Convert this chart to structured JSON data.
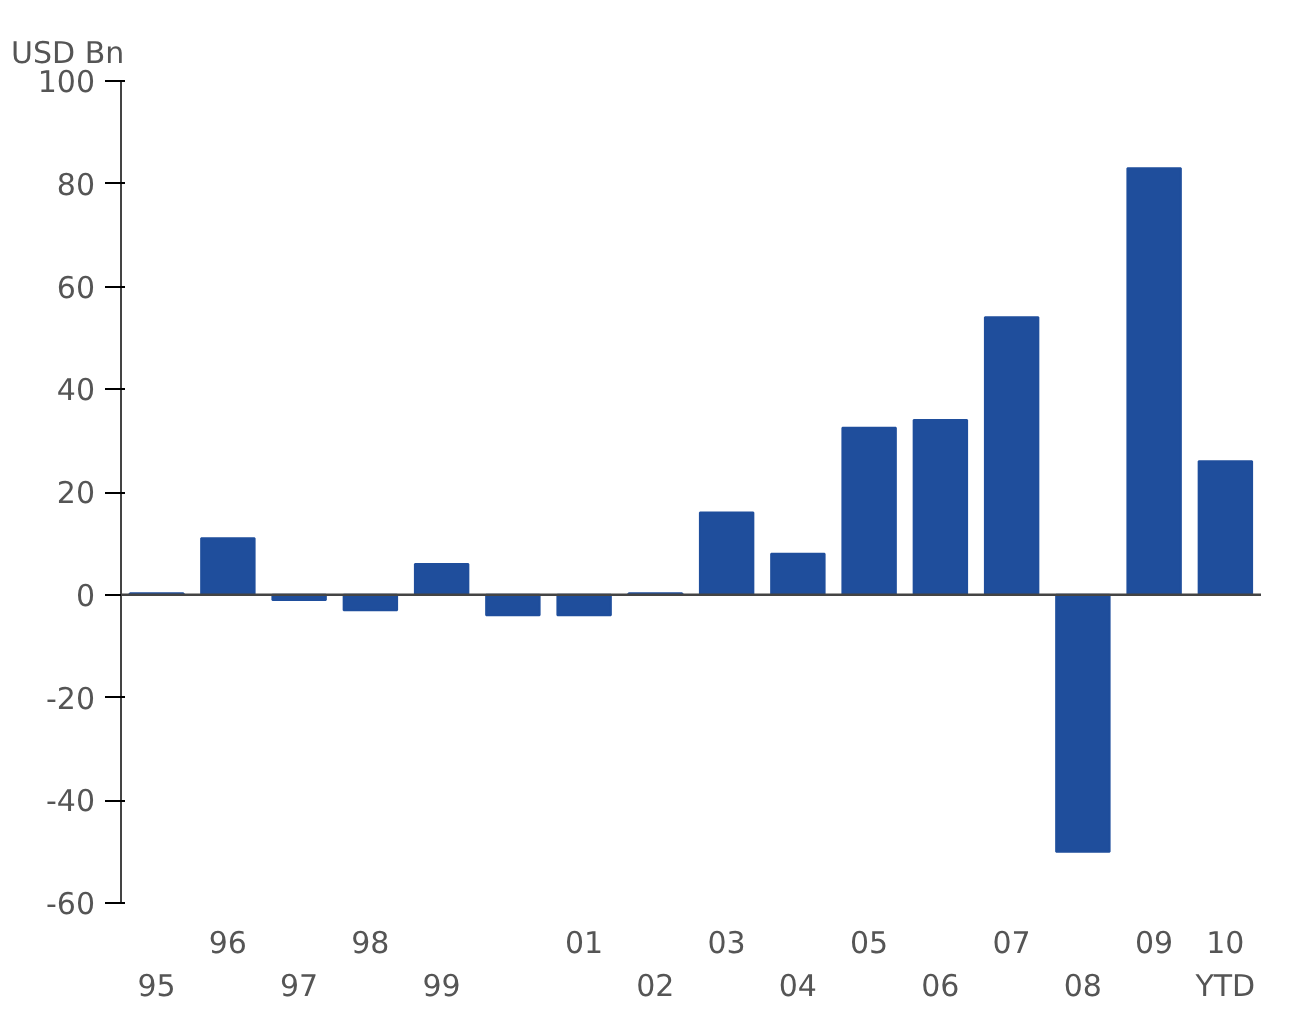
{
  "chart_data": {
    "type": "bar",
    "ylabel": "USD Bn",
    "categories": [
      "95",
      "96",
      "97",
      "98",
      "99",
      null,
      "01",
      "02",
      "03",
      "04",
      "05",
      "06",
      "07",
      "08",
      "09",
      "10\nYTD"
    ],
    "values": [
      0.3,
      11,
      -1,
      -3,
      6,
      -4,
      -4,
      0.3,
      16,
      8,
      32.5,
      34,
      54,
      -50,
      83,
      26
    ],
    "color": "#1f4e9c",
    "ylim": [
      -60,
      100
    ],
    "yticks": [
      -60,
      -40,
      -20,
      0,
      20,
      40,
      60,
      80,
      100
    ],
    "grid": false,
    "ref_lines": [
      {
        "axis": "y",
        "value": 0,
        "color": "#444444"
      }
    ]
  }
}
